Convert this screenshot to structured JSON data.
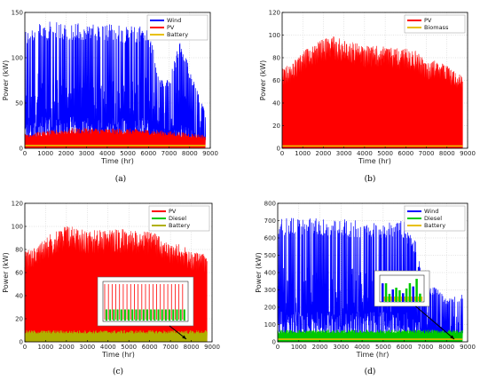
{
  "figure": {
    "panels": [
      "a",
      "b",
      "c",
      "d"
    ]
  },
  "chart_data": [
    {
      "id": "a",
      "type": "line",
      "sublabel": "(a)",
      "xlabel": "Time (hr)",
      "ylabel": "Power (kW)",
      "xlim": [
        0,
        9000
      ],
      "ylim": [
        0,
        150
      ],
      "xticks": [
        0,
        1000,
        2000,
        3000,
        4000,
        5000,
        6000,
        7000,
        8000,
        9000
      ],
      "yticks": [
        0,
        50,
        100,
        150
      ],
      "legend": "top-right",
      "grid": true,
      "series": [
        {
          "name": "Wind",
          "color": "#0000ff",
          "pattern": "spiky",
          "x": [
            0,
            400,
            1000,
            1500,
            2000,
            2500,
            3000,
            3500,
            4000,
            4500,
            5000,
            5500,
            6000,
            6500,
            7000,
            7500,
            8000,
            8760
          ],
          "values": [
            130,
            137,
            140,
            140,
            140,
            140,
            138,
            137,
            137,
            137,
            137,
            137,
            135,
            80,
            75,
            120,
            90,
            40
          ]
        },
        {
          "name": "PV",
          "color": "#ff0000",
          "pattern": "band",
          "x": [
            0,
            1000,
            2000,
            3000,
            4000,
            5000,
            6000,
            7000,
            8000,
            8760
          ],
          "values": [
            17,
            19,
            22,
            23,
            22,
            22,
            21,
            19,
            17,
            15
          ]
        },
        {
          "name": "Battery",
          "color": "#e8c000",
          "pattern": "flat",
          "x": [
            0,
            8760
          ],
          "values": [
            3,
            3
          ]
        }
      ],
      "insets": []
    },
    {
      "id": "b",
      "type": "area",
      "sublabel": "(b)",
      "xlabel": "Time (hr)",
      "ylabel": "Power (kW)",
      "xlim": [
        0,
        9000
      ],
      "ylim": [
        0,
        120
      ],
      "xticks": [
        0,
        1000,
        2000,
        3000,
        4000,
        5000,
        6000,
        7000,
        8000,
        9000
      ],
      "yticks": [
        0,
        20,
        40,
        60,
        80,
        100,
        120
      ],
      "legend": "top-right",
      "grid": true,
      "series": [
        {
          "name": "PV",
          "color": "#ff0000",
          "pattern": "area",
          "x": [
            0,
            500,
            1000,
            1500,
            2000,
            2500,
            3000,
            4000,
            5000,
            6000,
            6500,
            7000,
            7500,
            8000,
            8760
          ],
          "values": [
            70,
            76,
            85,
            92,
            97,
            99,
            96,
            91,
            90,
            88,
            86,
            76,
            78,
            73,
            64
          ]
        },
        {
          "name": "Biomass",
          "color": "#e8c000",
          "pattern": "flat",
          "x": [
            0,
            8760
          ],
          "values": [
            2,
            2
          ]
        }
      ],
      "insets": []
    },
    {
      "id": "c",
      "type": "area",
      "sublabel": "(c)",
      "xlabel": "Time (hr)",
      "ylabel": "Power (kW)",
      "xlim": [
        0,
        9000
      ],
      "ylim": [
        0,
        120
      ],
      "xticks": [
        0,
        1000,
        2000,
        3000,
        4000,
        5000,
        6000,
        7000,
        8000,
        9000
      ],
      "yticks": [
        0,
        20,
        40,
        60,
        80,
        100,
        120
      ],
      "legend": "top-right",
      "grid": true,
      "series": [
        {
          "name": "PV",
          "color": "#ff0000",
          "pattern": "area",
          "x": [
            0,
            500,
            1000,
            1500,
            2000,
            2500,
            3000,
            4000,
            5000,
            6000,
            6500,
            7000,
            7500,
            8000,
            8760
          ],
          "values": [
            78,
            83,
            91,
            96,
            102,
            99,
            97,
            97,
            98,
            95,
            93,
            84,
            85,
            78,
            76
          ]
        },
        {
          "name": "Diesel",
          "color": "#00c800",
          "pattern": "flat",
          "x": [
            0,
            8760
          ],
          "values": [
            2,
            2
          ]
        },
        {
          "name": "Battery",
          "color": "#b0b000",
          "pattern": "band",
          "x": [
            0,
            8760
          ],
          "values": [
            10,
            10
          ]
        }
      ],
      "insets": [
        {
          "series": [
            "PV",
            "Diesel"
          ]
        }
      ]
    },
    {
      "id": "d",
      "type": "line",
      "sublabel": "(d)",
      "xlabel": "Time (hr)",
      "ylabel": "Power (kW)",
      "xlim": [
        0,
        9000
      ],
      "ylim": [
        0,
        800
      ],
      "xticks": [
        0,
        1000,
        2000,
        3000,
        4000,
        5000,
        6000,
        7000,
        8000,
        9000
      ],
      "yticks": [
        0,
        100,
        200,
        300,
        400,
        500,
        600,
        700,
        800
      ],
      "legend": "top-right",
      "grid": true,
      "series": [
        {
          "name": "Wind",
          "color": "#0000ff",
          "pattern": "spiky",
          "x": [
            0,
            500,
            1000,
            1500,
            2000,
            2500,
            3000,
            3500,
            4000,
            4500,
            5000,
            5500,
            6000,
            6500,
            7000,
            7500,
            8000,
            8760
          ],
          "values": [
            710,
            715,
            715,
            715,
            715,
            712,
            710,
            710,
            705,
            705,
            700,
            700,
            700,
            600,
            300,
            320,
            250,
            280
          ]
        },
        {
          "name": "Diesel",
          "color": "#00c800",
          "pattern": "band",
          "x": [
            0,
            8760
          ],
          "values": [
            70,
            70
          ]
        },
        {
          "name": "Battery",
          "color": "#e8c000",
          "pattern": "flat",
          "x": [
            0,
            8760
          ],
          "values": [
            15,
            15
          ]
        }
      ],
      "insets": [
        {
          "series": [
            "Wind",
            "Diesel",
            "Battery"
          ]
        }
      ]
    }
  ]
}
